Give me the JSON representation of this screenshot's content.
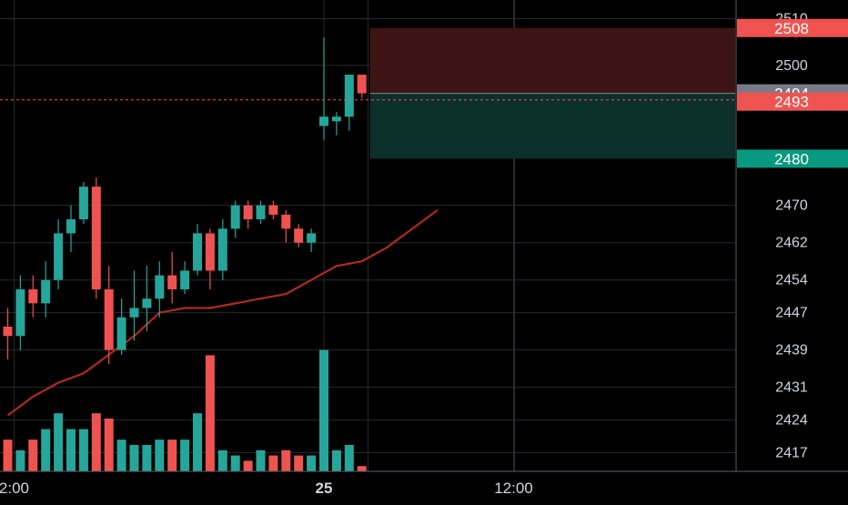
{
  "colors": {
    "background": "#000000",
    "grid": "#2a2a2e",
    "up": "#26a69a",
    "down": "#ef5350",
    "volume_up": "#26a69a",
    "volume_down": "#ef5350",
    "ma_line": "#b22b1c",
    "axis_text": "#d1d4dc",
    "stop_zone": "#3d1414",
    "target_zone": "#0b2f2b",
    "current_price_label": "#787b86",
    "target_label": "#089981"
  },
  "chart_data": {
    "type": "candlestick",
    "title": "",
    "xlabel": "",
    "ylabel": "",
    "ylim": [
      2413,
      2514
    ],
    "y_ticks": [
      2510,
      2500,
      2494,
      2493,
      2470,
      2462,
      2454,
      2447,
      2439,
      2431,
      2424,
      2417
    ],
    "x_ticks": [
      "2:00",
      "25",
      "12:00"
    ],
    "grid": true,
    "candles": [
      {
        "x": 0,
        "o": 2444,
        "h": 2448,
        "l": 2437,
        "c": 2442
      },
      {
        "x": 1,
        "o": 2442,
        "h": 2455,
        "l": 2439,
        "c": 2452
      },
      {
        "x": 2,
        "o": 2452,
        "h": 2455,
        "l": 2446,
        "c": 2449
      },
      {
        "x": 3,
        "o": 2449,
        "h": 2458,
        "l": 2446,
        "c": 2454
      },
      {
        "x": 4,
        "o": 2454,
        "h": 2467,
        "l": 2452,
        "c": 2464
      },
      {
        "x": 5,
        "o": 2464,
        "h": 2470,
        "l": 2460,
        "c": 2467
      },
      {
        "x": 6,
        "o": 2467,
        "h": 2475,
        "l": 2466,
        "c": 2474
      },
      {
        "x": 7,
        "o": 2474,
        "h": 2476,
        "l": 2450,
        "c": 2452
      },
      {
        "x": 8,
        "o": 2452,
        "h": 2457,
        "l": 2436,
        "c": 2439
      },
      {
        "x": 9,
        "o": 2439,
        "h": 2450,
        "l": 2438,
        "c": 2446
      },
      {
        "x": 10,
        "o": 2446,
        "h": 2456,
        "l": 2441,
        "c": 2448
      },
      {
        "x": 11,
        "o": 2448,
        "h": 2457,
        "l": 2443,
        "c": 2450
      },
      {
        "x": 12,
        "o": 2450,
        "h": 2458,
        "l": 2446,
        "c": 2455
      },
      {
        "x": 13,
        "o": 2455,
        "h": 2460,
        "l": 2449,
        "c": 2452
      },
      {
        "x": 14,
        "o": 2452,
        "h": 2458,
        "l": 2451,
        "c": 2456
      },
      {
        "x": 15,
        "o": 2456,
        "h": 2466,
        "l": 2455,
        "c": 2464
      },
      {
        "x": 16,
        "o": 2464,
        "h": 2465,
        "l": 2452,
        "c": 2456
      },
      {
        "x": 17,
        "o": 2456,
        "h": 2467,
        "l": 2454,
        "c": 2465
      },
      {
        "x": 18,
        "o": 2465,
        "h": 2471,
        "l": 2463,
        "c": 2470
      },
      {
        "x": 19,
        "o": 2470,
        "h": 2471,
        "l": 2465,
        "c": 2467
      },
      {
        "x": 20,
        "o": 2467,
        "h": 2471,
        "l": 2466,
        "c": 2470
      },
      {
        "x": 21,
        "o": 2470,
        "h": 2471,
        "l": 2467,
        "c": 2468
      },
      {
        "x": 22,
        "o": 2468,
        "h": 2469,
        "l": 2462,
        "c": 2465
      },
      {
        "x": 23,
        "o": 2465,
        "h": 2466,
        "l": 2461,
        "c": 2462
      },
      {
        "x": 24,
        "o": 2462,
        "h": 2465,
        "l": 2460,
        "c": 2464
      },
      {
        "x": 25,
        "o": 2487,
        "h": 2506,
        "l": 2484,
        "c": 2489
      },
      {
        "x": 26,
        "o": 2488,
        "h": 2490,
        "l": 2485,
        "c": 2489
      },
      {
        "x": 27,
        "o": 2489,
        "h": 2498,
        "l": 2486,
        "c": 2498
      },
      {
        "x": 28,
        "o": 2498,
        "h": 2498,
        "l": 2493,
        "c": 2494
      }
    ],
    "volume": [
      6,
      4,
      6,
      8,
      11,
      8,
      8,
      11,
      10,
      6,
      5,
      5,
      6,
      6,
      6,
      11,
      22,
      4,
      3,
      2,
      4,
      3,
      4,
      3,
      3,
      23,
      4,
      5,
      1
    ],
    "ma_series": [
      {
        "x": 0,
        "y": 2425
      },
      {
        "x": 2,
        "y": 2429
      },
      {
        "x": 4,
        "y": 2432
      },
      {
        "x": 6,
        "y": 2434
      },
      {
        "x": 8,
        "y": 2438
      },
      {
        "x": 10,
        "y": 2442
      },
      {
        "x": 12,
        "y": 2447
      },
      {
        "x": 14,
        "y": 2448
      },
      {
        "x": 16,
        "y": 2448
      },
      {
        "x": 18,
        "y": 2449
      },
      {
        "x": 20,
        "y": 2450
      },
      {
        "x": 22,
        "y": 2451
      },
      {
        "x": 24,
        "y": 2454
      },
      {
        "x": 26,
        "y": 2457
      },
      {
        "x": 28,
        "y": 2458
      },
      {
        "x": 30,
        "y": 2461
      },
      {
        "x": 32,
        "y": 2465
      },
      {
        "x": 34,
        "y": 2469
      }
    ],
    "position": {
      "entry_price": 2494,
      "stop_price": 2508,
      "target_price": 2480,
      "current_price": 2493,
      "start_x": 28.5,
      "end_x": 68
    },
    "price_labels": [
      {
        "role": "stop",
        "text": "2508",
        "price": 2508
      },
      {
        "role": "entry",
        "text": "2494",
        "price": 2494
      },
      {
        "role": "current",
        "text": "2493",
        "price": 2493
      },
      {
        "role": "target",
        "text": "2480",
        "price": 2480
      }
    ],
    "axis_ticks": [
      {
        "text": "2510",
        "price": 2510
      },
      {
        "text": "2500",
        "price": 2500
      },
      {
        "text": "2470",
        "price": 2470
      },
      {
        "text": "2462",
        "price": 2462
      },
      {
        "text": "2454",
        "price": 2454
      },
      {
        "text": "2447",
        "price": 2447
      },
      {
        "text": "2439",
        "price": 2439
      },
      {
        "text": "2431",
        "price": 2431
      },
      {
        "text": "2424",
        "price": 2424
      },
      {
        "text": "2417",
        "price": 2417
      }
    ],
    "time_ticks": [
      {
        "text": "2:00",
        "x": 0.5
      },
      {
        "text": "25",
        "x": 25
      },
      {
        "text": "12:00",
        "x": 40
      }
    ]
  }
}
